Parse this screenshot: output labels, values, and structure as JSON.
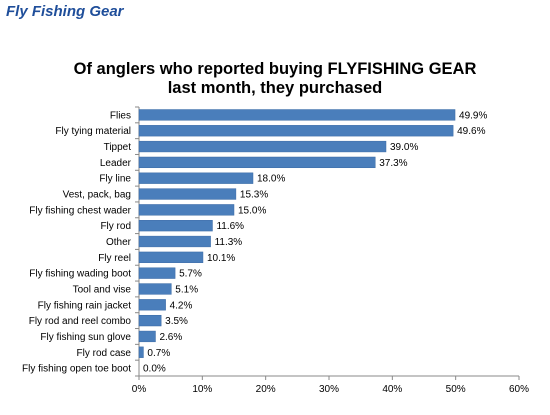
{
  "page": {
    "header": "Fly Fishing Gear"
  },
  "chart_data": {
    "type": "bar",
    "orientation": "horizontal",
    "title_lines": [
      "Of anglers who reported buying FLYFISHING GEAR",
      "last month, they purchased"
    ],
    "categories": [
      "Flies",
      "Fly tying material",
      "Tippet",
      "Leader",
      "Fly line",
      "Vest, pack, bag",
      "Fly fishing chest wader",
      "Fly rod",
      "Other",
      "Fly reel",
      "Fly fishing wading boot",
      "Tool and vise",
      "Fly fishing rain jacket",
      "Fly rod and reel combo",
      "Fly fishing sun glove",
      "Fly rod case",
      "Fly fishing open toe boot"
    ],
    "values": [
      49.9,
      49.6,
      39.0,
      37.3,
      18.0,
      15.3,
      15.0,
      11.6,
      11.3,
      10.1,
      5.7,
      5.1,
      4.2,
      3.5,
      2.6,
      0.7,
      0.0
    ],
    "value_labels": [
      "49.9%",
      "49.6%",
      "39.0%",
      "37.3%",
      "18.0%",
      "15.3%",
      "15.0%",
      "11.6%",
      "11.3%",
      "10.1%",
      "5.7%",
      "5.1%",
      "4.2%",
      "3.5%",
      "2.6%",
      "0.7%",
      "0.0%"
    ],
    "x_ticks": [
      0,
      10,
      20,
      30,
      40,
      50,
      60
    ],
    "x_tick_labels": [
      "0%",
      "10%",
      "20%",
      "30%",
      "40%",
      "50%",
      "60%"
    ],
    "xlim": [
      0,
      60
    ],
    "grid": false,
    "legend": "none",
    "colors": {
      "bar": "#4a7ebb",
      "bar_edge": "#3a6aa5",
      "axis": "#888888",
      "header": "#1f4e9a"
    }
  }
}
